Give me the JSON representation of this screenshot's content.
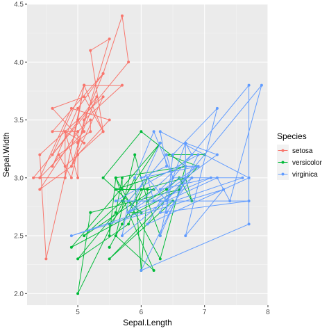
{
  "chart_data": {
    "type": "line",
    "xlabel": "Sepal.Length",
    "ylabel": "Sepal.Width",
    "xlim": [
      4.2,
      8.0
    ],
    "ylim": [
      1.9,
      4.5
    ],
    "x_ticks": [
      5,
      6,
      7,
      8
    ],
    "y_ticks": [
      2.0,
      2.5,
      3.0,
      3.5,
      4.0,
      4.5
    ],
    "x_tick_labels": [
      "5",
      "6",
      "7",
      "8"
    ],
    "y_tick_labels": [
      "2.0",
      "2.5",
      "3.0",
      "3.5",
      "4.0",
      "4.5"
    ],
    "grid": true,
    "legend": {
      "title": "Species",
      "placement": "right"
    },
    "series": [
      {
        "name": "setosa",
        "color": "#F8766D",
        "points": [
          [
            5.1,
            3.5
          ],
          [
            4.9,
            3.0
          ],
          [
            4.7,
            3.2
          ],
          [
            4.6,
            3.1
          ],
          [
            5.0,
            3.6
          ],
          [
            5.4,
            3.9
          ],
          [
            4.6,
            3.4
          ],
          [
            5.0,
            3.4
          ],
          [
            4.4,
            2.9
          ],
          [
            4.9,
            3.1
          ],
          [
            5.4,
            3.7
          ],
          [
            4.8,
            3.4
          ],
          [
            4.8,
            3.0
          ],
          [
            4.3,
            3.0
          ],
          [
            5.8,
            4.0
          ],
          [
            5.7,
            4.4
          ],
          [
            5.4,
            3.9
          ],
          [
            5.1,
            3.5
          ],
          [
            5.7,
            3.8
          ],
          [
            5.1,
            3.8
          ],
          [
            5.4,
            3.4
          ],
          [
            5.1,
            3.7
          ],
          [
            4.6,
            3.6
          ],
          [
            5.1,
            3.3
          ],
          [
            4.8,
            3.4
          ],
          [
            5.0,
            3.0
          ],
          [
            5.0,
            3.4
          ],
          [
            5.2,
            3.5
          ],
          [
            5.2,
            3.4
          ],
          [
            4.7,
            3.2
          ],
          [
            4.8,
            3.1
          ],
          [
            5.4,
            3.4
          ],
          [
            5.2,
            4.1
          ],
          [
            5.5,
            4.2
          ],
          [
            4.9,
            3.1
          ],
          [
            5.0,
            3.2
          ],
          [
            5.5,
            3.5
          ],
          [
            4.9,
            3.6
          ],
          [
            4.4,
            3.0
          ],
          [
            5.1,
            3.4
          ],
          [
            5.0,
            3.5
          ],
          [
            4.5,
            2.3
          ],
          [
            4.4,
            3.2
          ],
          [
            5.0,
            3.5
          ],
          [
            5.1,
            3.8
          ],
          [
            4.8,
            3.0
          ],
          [
            5.1,
            3.8
          ],
          [
            4.6,
            3.2
          ],
          [
            5.3,
            3.7
          ],
          [
            5.0,
            3.3
          ]
        ]
      },
      {
        "name": "versicolor",
        "color": "#00BA38",
        "points": [
          [
            7.0,
            3.2
          ],
          [
            6.4,
            3.2
          ],
          [
            6.9,
            3.1
          ],
          [
            5.5,
            2.3
          ],
          [
            6.5,
            2.8
          ],
          [
            5.7,
            2.8
          ],
          [
            6.3,
            3.3
          ],
          [
            4.9,
            2.4
          ],
          [
            6.6,
            2.9
          ],
          [
            5.2,
            2.7
          ],
          [
            5.0,
            2.0
          ],
          [
            5.9,
            3.0
          ],
          [
            6.0,
            2.2
          ],
          [
            6.1,
            2.9
          ],
          [
            5.6,
            2.9
          ],
          [
            6.7,
            3.1
          ],
          [
            5.6,
            3.0
          ],
          [
            5.8,
            2.7
          ],
          [
            6.2,
            2.2
          ],
          [
            5.6,
            2.5
          ],
          [
            5.9,
            3.2
          ],
          [
            6.1,
            2.8
          ],
          [
            6.3,
            2.5
          ],
          [
            6.1,
            2.8
          ],
          [
            6.4,
            2.9
          ],
          [
            6.6,
            3.0
          ],
          [
            6.8,
            2.8
          ],
          [
            6.7,
            3.0
          ],
          [
            6.0,
            2.9
          ],
          [
            5.7,
            2.6
          ],
          [
            5.5,
            2.4
          ],
          [
            5.5,
            2.4
          ],
          [
            5.8,
            2.7
          ],
          [
            6.0,
            2.7
          ],
          [
            5.4,
            3.0
          ],
          [
            6.0,
            3.4
          ],
          [
            6.7,
            3.1
          ],
          [
            6.3,
            2.3
          ],
          [
            5.6,
            3.0
          ],
          [
            5.5,
            2.5
          ],
          [
            5.5,
            2.6
          ],
          [
            6.1,
            3.0
          ],
          [
            5.8,
            2.6
          ],
          [
            5.0,
            2.3
          ],
          [
            5.6,
            2.7
          ],
          [
            5.7,
            3.0
          ],
          [
            5.7,
            2.9
          ],
          [
            6.2,
            2.9
          ],
          [
            5.1,
            2.5
          ],
          [
            5.7,
            2.8
          ]
        ]
      },
      {
        "name": "virginica",
        "color": "#619CFF",
        "points": [
          [
            6.3,
            3.3
          ],
          [
            5.8,
            2.7
          ],
          [
            7.1,
            3.0
          ],
          [
            6.3,
            2.9
          ],
          [
            6.5,
            3.0
          ],
          [
            7.6,
            3.0
          ],
          [
            4.9,
            2.5
          ],
          [
            7.3,
            2.9
          ],
          [
            6.7,
            2.5
          ],
          [
            7.2,
            3.6
          ],
          [
            6.5,
            3.2
          ],
          [
            6.4,
            2.7
          ],
          [
            6.8,
            3.0
          ],
          [
            5.7,
            2.5
          ],
          [
            5.8,
            2.8
          ],
          [
            6.4,
            3.2
          ],
          [
            6.5,
            3.0
          ],
          [
            7.7,
            3.8
          ],
          [
            7.7,
            2.6
          ],
          [
            6.0,
            2.2
          ],
          [
            6.9,
            3.2
          ],
          [
            5.6,
            2.8
          ],
          [
            7.7,
            2.8
          ],
          [
            6.3,
            2.7
          ],
          [
            6.7,
            3.3
          ],
          [
            7.2,
            3.2
          ],
          [
            6.2,
            2.8
          ],
          [
            6.1,
            3.0
          ],
          [
            6.4,
            2.8
          ],
          [
            7.2,
            3.0
          ],
          [
            7.4,
            2.8
          ],
          [
            7.9,
            3.8
          ],
          [
            6.4,
            2.8
          ],
          [
            6.3,
            2.8
          ],
          [
            6.1,
            2.6
          ],
          [
            7.7,
            3.0
          ],
          [
            6.3,
            3.4
          ],
          [
            6.4,
            3.1
          ],
          [
            6.0,
            3.0
          ],
          [
            6.9,
            3.1
          ],
          [
            6.7,
            3.1
          ],
          [
            6.9,
            3.1
          ],
          [
            5.8,
            2.7
          ],
          [
            6.8,
            3.2
          ],
          [
            6.7,
            3.3
          ],
          [
            6.7,
            3.0
          ],
          [
            6.3,
            2.5
          ],
          [
            6.5,
            3.0
          ],
          [
            6.2,
            3.4
          ],
          [
            5.9,
            3.0
          ]
        ]
      }
    ]
  }
}
